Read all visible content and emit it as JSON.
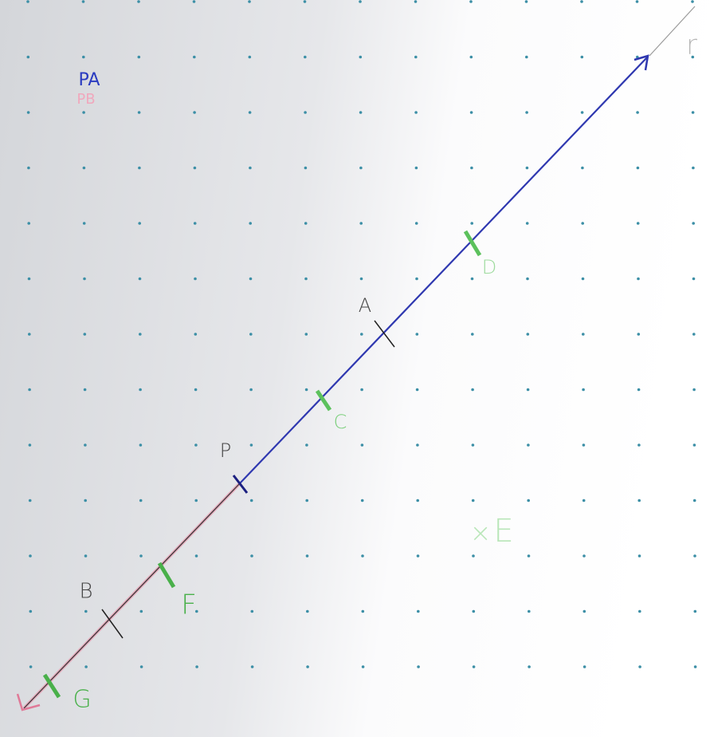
{
  "legend": {
    "pa": "PA",
    "pb": "PB"
  },
  "ray_label": "r",
  "points": [
    {
      "label": "A"
    },
    {
      "label": "B"
    },
    {
      "label": "P"
    },
    {
      "label": "C"
    },
    {
      "label": "D"
    },
    {
      "label": "F"
    },
    {
      "label": "G"
    },
    {
      "label": "E"
    }
  ]
}
